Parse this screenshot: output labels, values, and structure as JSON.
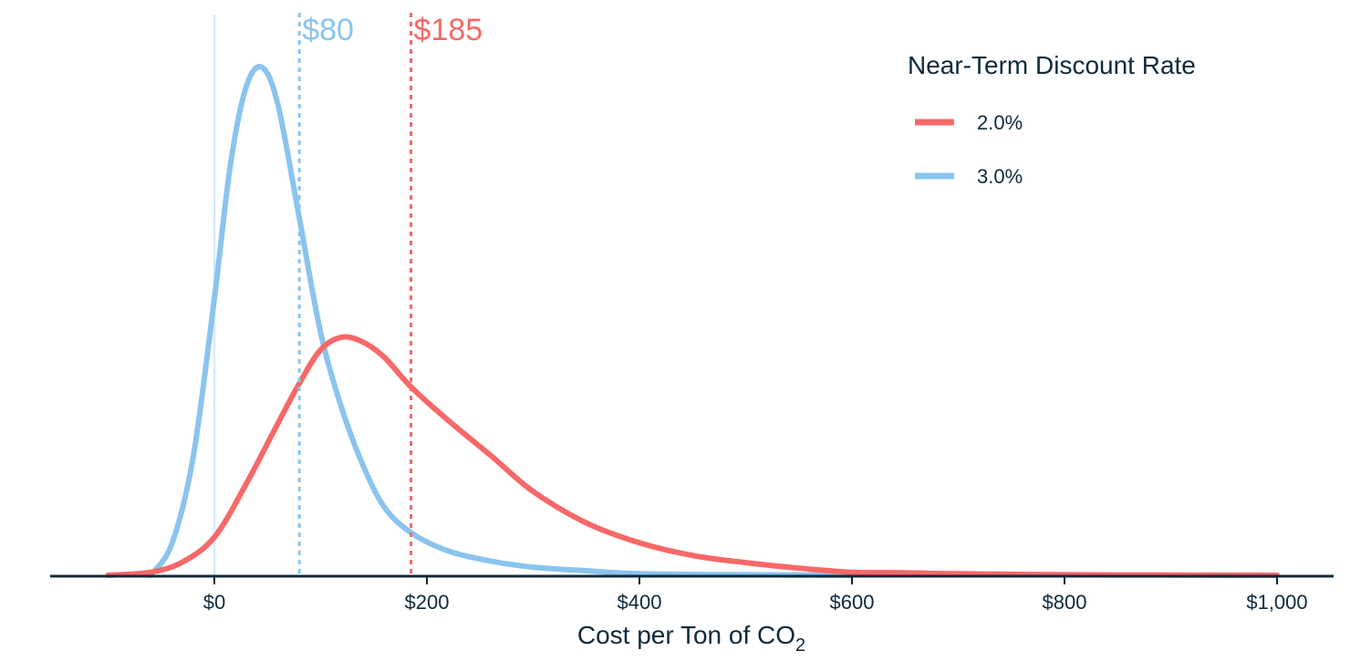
{
  "chart_data": {
    "type": "line",
    "subtype": "density",
    "title": "",
    "xlabel": "Cost per Ton of CO",
    "xlabel_subscript": "2",
    "ylabel": "",
    "xlim": [
      -150,
      1050
    ],
    "ylim": [
      0,
      1
    ],
    "grid": false,
    "x_ticks": [
      0,
      200,
      400,
      600,
      800,
      1000
    ],
    "x_tick_labels": [
      "$0",
      "$200",
      "$400",
      "$600",
      "$800",
      "$1,000"
    ],
    "legend": {
      "title": "Near-Term Discount Rate",
      "position": "top-right",
      "entries": [
        {
          "label": "2.0%",
          "color": "#f86868"
        },
        {
          "label": "3.0%",
          "color": "#8ac4ee"
        }
      ]
    },
    "zero_line": {
      "x": 0,
      "color": "#d6ebfa"
    },
    "reference_lines": [
      {
        "x": 80,
        "label": "$80",
        "color": "#8ac4ee",
        "series": "3.0%"
      },
      {
        "x": 185,
        "label": "$185",
        "color": "#f86868",
        "series": "2.0%"
      }
    ],
    "series": [
      {
        "name": "2.0%",
        "color": "#f86868",
        "x": [
          -100,
          -60,
          -30,
          0,
          30,
          60,
          80,
          100,
          120,
          140,
          160,
          185,
          220,
          260,
          300,
          350,
          400,
          450,
          500,
          550,
          600,
          650,
          700,
          800,
          900,
          1000
        ],
        "y": [
          0.0,
          0.006,
          0.026,
          0.075,
          0.18,
          0.3,
          0.378,
          0.444,
          0.469,
          0.459,
          0.429,
          0.371,
          0.305,
          0.236,
          0.165,
          0.103,
          0.064,
          0.039,
          0.025,
          0.014,
          0.006,
          0.005,
          0.003,
          0.001,
          0.0005,
          0.0
        ]
      },
      {
        "name": "3.0%",
        "color": "#8ac4ee",
        "x": [
          -60,
          -40,
          -20,
          0,
          15,
          30,
          45,
          60,
          80,
          100,
          120,
          140,
          160,
          185,
          220,
          260,
          300,
          350,
          400,
          500,
          600
        ],
        "y": [
          0.0,
          0.062,
          0.232,
          0.545,
          0.807,
          0.962,
          1.0,
          0.925,
          0.703,
          0.478,
          0.328,
          0.216,
          0.134,
          0.084,
          0.048,
          0.028,
          0.016,
          0.009,
          0.003,
          0.001,
          0.0
        ]
      }
    ]
  }
}
